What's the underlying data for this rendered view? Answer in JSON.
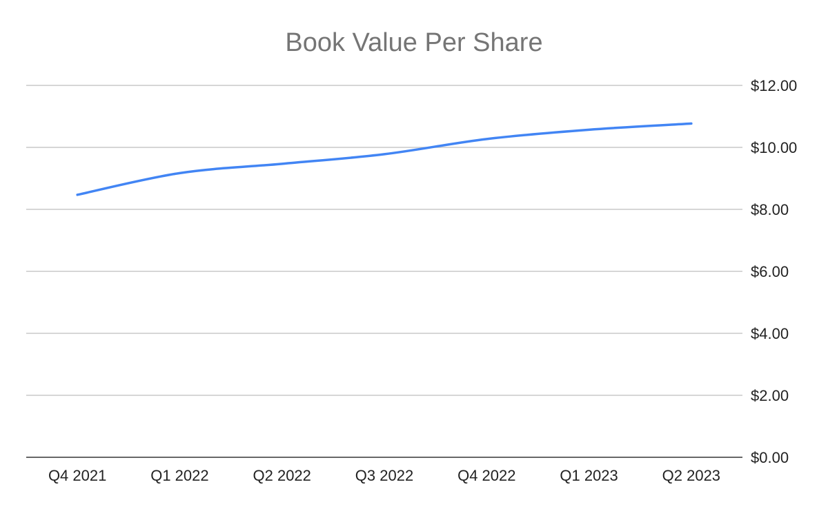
{
  "chart_data": {
    "type": "line",
    "title": "Book Value Per Share",
    "xlabel": "",
    "ylabel": "",
    "categories": [
      "Q4 2021",
      "Q1 2022",
      "Q2 2022",
      "Q3 2022",
      "Q4 2022",
      "Q1 2023",
      "Q2 2023"
    ],
    "series": [
      {
        "values": [
          8.47,
          9.17,
          9.47,
          9.78,
          10.27,
          10.57,
          10.77
        ],
        "color": "#4285f4"
      }
    ],
    "ylim": [
      0,
      12
    ],
    "yticks": [
      0,
      2,
      4,
      6,
      8,
      10,
      12
    ],
    "ytick_labels": [
      "$0.00",
      "$2.00",
      "$4.00",
      "$6.00",
      "$8.00",
      "$10.00",
      "$12.00"
    ],
    "y_axis_side": "right",
    "grid": true,
    "legend": "none",
    "smooth": true
  }
}
